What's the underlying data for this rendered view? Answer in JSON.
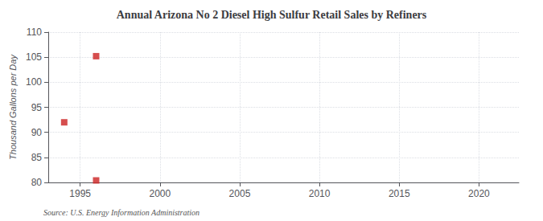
{
  "chart_data": {
    "type": "scatter",
    "title": "Annual Arizona No 2 Diesel High Sulfur Retail Sales by Refiners",
    "ylabel": "Thousand Gallons per Day",
    "annotation": "Source: U.S. Energy Information Administration",
    "x": [
      1994,
      1996,
      1996
    ],
    "values": [
      92.0,
      105.2,
      80.4
    ],
    "color": "#cc2222",
    "marker": "square",
    "xlim": [
      1993,
      2022.5
    ],
    "ylim": [
      80,
      110
    ],
    "xticks": [
      1995,
      2000,
      2005,
      2010,
      2015,
      2020
    ],
    "yticks": [
      80,
      85,
      90,
      95,
      100,
      105,
      110
    ],
    "grid": true
  }
}
